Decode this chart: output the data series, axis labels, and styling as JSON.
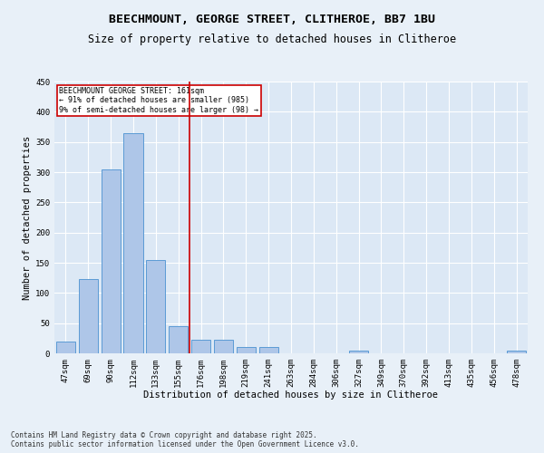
{
  "title_line1": "BEECHMOUNT, GEORGE STREET, CLITHEROE, BB7 1BU",
  "title_line2": "Size of property relative to detached houses in Clitheroe",
  "xlabel": "Distribution of detached houses by size in Clitheroe",
  "ylabel": "Number of detached properties",
  "bar_labels": [
    "47sqm",
    "69sqm",
    "90sqm",
    "112sqm",
    "133sqm",
    "155sqm",
    "176sqm",
    "198sqm",
    "219sqm",
    "241sqm",
    "263sqm",
    "284sqm",
    "306sqm",
    "327sqm",
    "349sqm",
    "370sqm",
    "392sqm",
    "413sqm",
    "435sqm",
    "456sqm",
    "478sqm"
  ],
  "bar_values": [
    20,
    123,
    305,
    365,
    155,
    45,
    22,
    22,
    10,
    10,
    0,
    0,
    0,
    5,
    0,
    0,
    0,
    0,
    0,
    0,
    5
  ],
  "bar_color": "#aec6e8",
  "bar_edgecolor": "#5b9bd5",
  "vline_pos": 5.5,
  "vline_color": "#cc0000",
  "annotation_text": "BEECHMOUNT GEORGE STREET: 161sqm\n← 91% of detached houses are smaller (985)\n9% of semi-detached houses are larger (98) →",
  "annotation_box_color": "#ffffff",
  "annotation_box_edgecolor": "#cc0000",
  "ylim": [
    0,
    450
  ],
  "yticks": [
    0,
    50,
    100,
    150,
    200,
    250,
    300,
    350,
    400,
    450
  ],
  "footnote": "Contains HM Land Registry data © Crown copyright and database right 2025.\nContains public sector information licensed under the Open Government Licence v3.0.",
  "bg_color": "#e8f0f8",
  "plot_bg_color": "#dce8f5",
  "grid_color": "#ffffff",
  "title_fontsize": 9.5,
  "subtitle_fontsize": 8.5,
  "axis_label_fontsize": 7.5,
  "tick_fontsize": 6.5,
  "annot_fontsize": 6.0,
  "footnote_fontsize": 5.5
}
